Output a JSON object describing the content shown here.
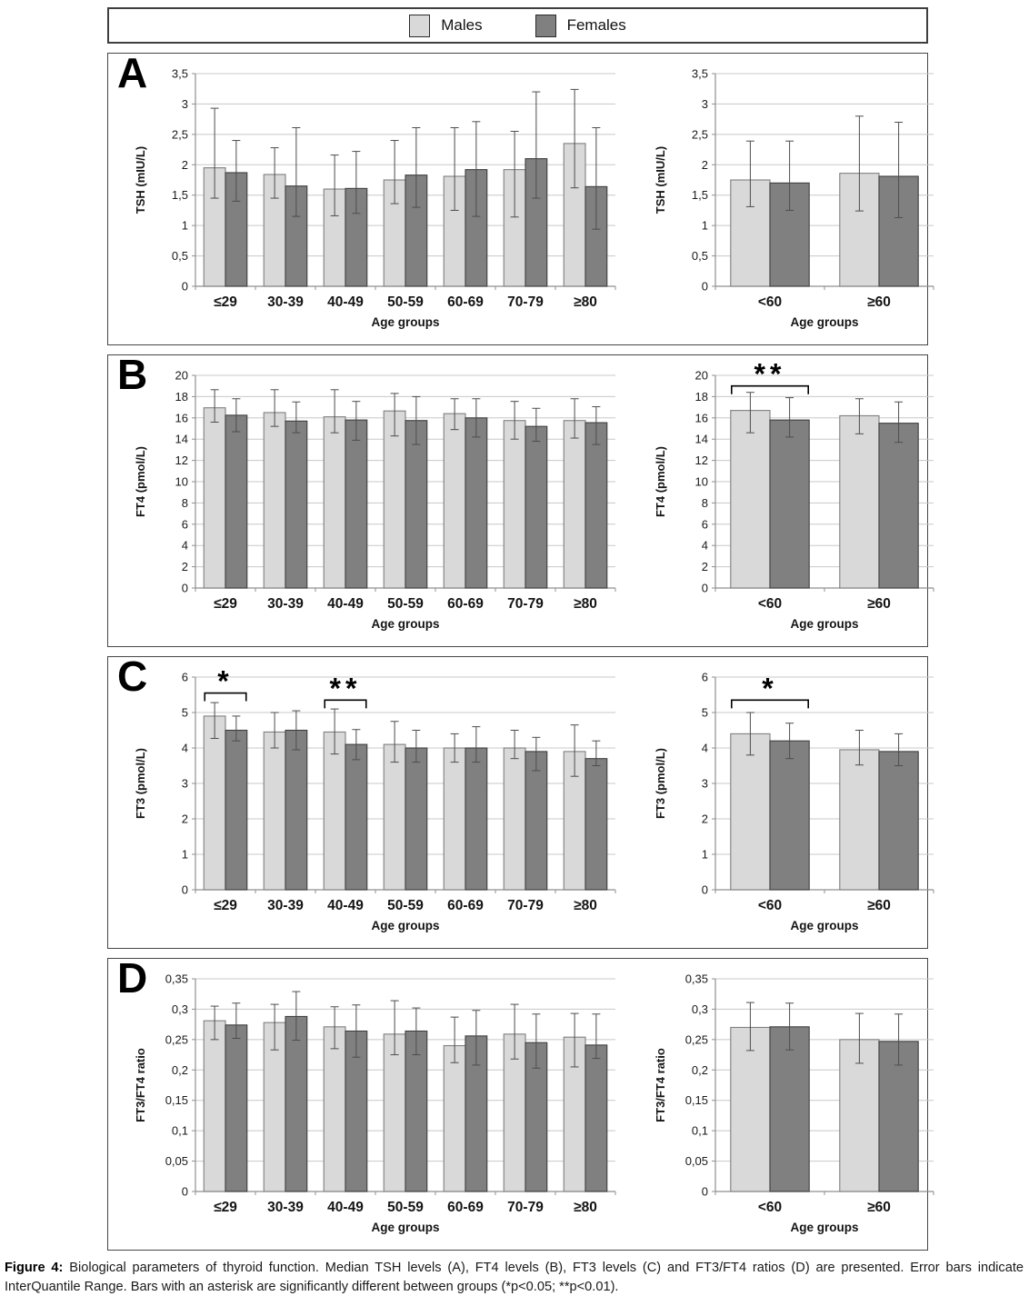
{
  "colors": {
    "male_fill": "#d9d9d9",
    "male_stroke": "#7f7f7f",
    "female_fill": "#808080",
    "female_stroke": "#3f3f3f",
    "grid": "#c8c8c8",
    "axis": "#8f8f8f",
    "error_bar": "#4d4d4d",
    "bracket": "#000000"
  },
  "legend": {
    "items": [
      {
        "label": "Males",
        "color": "#d9d9d9"
      },
      {
        "label": "Females",
        "color": "#808080"
      }
    ]
  },
  "panels": [
    {
      "letter": "A"
    },
    {
      "letter": "B"
    },
    {
      "letter": "C"
    },
    {
      "letter": "D"
    }
  ],
  "caption": {
    "prefix": "Figure 4:",
    "text": " Biological parameters of thyroid function. Median TSH levels (A), FT4 levels (B), FT3 levels (C) and FT3/FT4 ratios (D) are presented. Error bars indicate InterQuantile Range. Bars with an asterisk are significantly different between groups (*p<0.05; **p<0.01)."
  },
  "chart_data": [
    {
      "panel": "A",
      "position": "left",
      "type": "bar",
      "title": "",
      "xlabel": "Age groups",
      "ylabel": "TSH (mIU/L)",
      "categories": [
        "≤29",
        "30-39",
        "40-49",
        "50-59",
        "60-69",
        "70-79",
        "≥80"
      ],
      "ylim": [
        0,
        3.5
      ],
      "ytick_labels": [
        "0",
        "0,5",
        "1",
        "1,5",
        "2",
        "2,5",
        "3",
        "3,5"
      ],
      "series": [
        {
          "name": "Males",
          "values": [
            1.95,
            1.84,
            1.6,
            1.75,
            1.81,
            1.92,
            2.35
          ],
          "err_lo": [
            1.45,
            1.45,
            1.16,
            1.36,
            1.25,
            1.14,
            1.62
          ],
          "err_hi": [
            2.93,
            2.28,
            2.16,
            2.4,
            2.61,
            2.55,
            3.24
          ]
        },
        {
          "name": "Females",
          "values": [
            1.87,
            1.65,
            1.61,
            1.83,
            1.92,
            2.1,
            1.64
          ],
          "err_lo": [
            1.4,
            1.15,
            1.2,
            1.3,
            1.15,
            1.45,
            0.94
          ],
          "err_hi": [
            2.4,
            2.61,
            2.22,
            2.61,
            2.71,
            3.2,
            2.61
          ]
        }
      ],
      "brackets": []
    },
    {
      "panel": "A",
      "position": "right",
      "type": "bar",
      "title": "",
      "xlabel": "Age groups",
      "ylabel": "TSH (mIU/L)",
      "categories": [
        "<60",
        "≥60"
      ],
      "ylim": [
        0,
        3.5
      ],
      "ytick_labels": [
        "0",
        "0,5",
        "1",
        "1,5",
        "2",
        "2,5",
        "3",
        "3,5"
      ],
      "series": [
        {
          "name": "Males",
          "values": [
            1.75,
            1.86
          ],
          "err_lo": [
            1.31,
            1.24
          ],
          "err_hi": [
            2.39,
            2.8
          ]
        },
        {
          "name": "Females",
          "values": [
            1.7,
            1.81
          ],
          "err_lo": [
            1.25,
            1.13
          ],
          "err_hi": [
            2.39,
            2.7
          ]
        }
      ],
      "brackets": []
    },
    {
      "panel": "B",
      "position": "left",
      "type": "bar",
      "title": "",
      "xlabel": "Age groups",
      "ylabel": "FT4 (pmol/L)",
      "categories": [
        "≤29",
        "30-39",
        "40-49",
        "50-59",
        "60-69",
        "70-79",
        "≥80"
      ],
      "ylim": [
        0,
        20
      ],
      "ytick_labels": [
        "0",
        "2",
        "4",
        "6",
        "8",
        "10",
        "12",
        "14",
        "16",
        "18",
        "20"
      ],
      "series": [
        {
          "name": "Males",
          "values": [
            16.95,
            16.5,
            16.1,
            16.65,
            16.4,
            15.75,
            15.75
          ],
          "err_lo": [
            15.6,
            15.2,
            14.6,
            14.3,
            14.9,
            14.0,
            14.1
          ],
          "err_hi": [
            18.65,
            18.65,
            18.65,
            18.3,
            17.8,
            17.55,
            17.8
          ]
        },
        {
          "name": "Females",
          "values": [
            16.25,
            15.7,
            15.8,
            15.75,
            16.0,
            15.2,
            15.55
          ],
          "err_lo": [
            14.7,
            14.6,
            13.9,
            13.5,
            14.2,
            13.8,
            13.5
          ],
          "err_hi": [
            17.8,
            17.5,
            17.55,
            18.0,
            17.8,
            16.9,
            17.05
          ]
        }
      ],
      "brackets": []
    },
    {
      "panel": "B",
      "position": "right",
      "type": "bar",
      "title": "",
      "xlabel": "Age groups",
      "ylabel": "FT4 (pmol/L)",
      "categories": [
        "<60",
        "≥60"
      ],
      "ylim": [
        0,
        20
      ],
      "ytick_labels": [
        "0",
        "2",
        "4",
        "6",
        "8",
        "10",
        "12",
        "14",
        "16",
        "18",
        "20"
      ],
      "series": [
        {
          "name": "Males",
          "values": [
            16.7,
            16.2
          ],
          "err_lo": [
            14.6,
            14.5
          ],
          "err_hi": [
            18.4,
            17.8
          ]
        },
        {
          "name": "Females",
          "values": [
            15.8,
            15.5
          ],
          "err_lo": [
            14.2,
            13.7
          ],
          "err_hi": [
            17.9,
            17.5
          ]
        }
      ],
      "brackets": [
        {
          "group": 0,
          "label": "**",
          "y": 19.0
        }
      ]
    },
    {
      "panel": "C",
      "position": "left",
      "type": "bar",
      "title": "",
      "xlabel": "Age groups",
      "ylabel": "FT3 (pmol/L)",
      "categories": [
        "≤29",
        "30-39",
        "40-49",
        "50-59",
        "60-69",
        "70-79",
        "≥80"
      ],
      "ylim": [
        0,
        6
      ],
      "ytick_labels": [
        "0",
        "1",
        "2",
        "3",
        "4",
        "5",
        "6"
      ],
      "series": [
        {
          "name": "Males",
          "values": [
            4.9,
            4.45,
            4.45,
            4.1,
            4.0,
            4.0,
            3.9
          ],
          "err_lo": [
            4.27,
            4.0,
            3.83,
            3.6,
            3.6,
            3.7,
            3.2
          ],
          "err_hi": [
            5.28,
            5.0,
            5.1,
            4.75,
            4.4,
            4.5,
            4.65
          ]
        },
        {
          "name": "Females",
          "values": [
            4.5,
            4.5,
            4.1,
            4.0,
            4.0,
            3.9,
            3.7
          ],
          "err_lo": [
            4.2,
            3.95,
            3.67,
            3.6,
            3.6,
            3.36,
            3.5
          ],
          "err_hi": [
            4.9,
            5.05,
            4.52,
            4.5,
            4.6,
            4.3,
            4.2
          ]
        }
      ],
      "brackets": [
        {
          "group": 0,
          "label": "*",
          "y": 5.55
        },
        {
          "group": 2,
          "label": "**",
          "y": 5.35
        }
      ]
    },
    {
      "panel": "C",
      "position": "right",
      "type": "bar",
      "title": "",
      "xlabel": "Age groups",
      "ylabel": "FT3 (pmol/L)",
      "categories": [
        "<60",
        "≥60"
      ],
      "ylim": [
        0,
        6
      ],
      "ytick_labels": [
        "0",
        "1",
        "2",
        "3",
        "4",
        "5",
        "6"
      ],
      "series": [
        {
          "name": "Males",
          "values": [
            4.4,
            3.95
          ],
          "err_lo": [
            3.8,
            3.52
          ],
          "err_hi": [
            5.0,
            4.5
          ]
        },
        {
          "name": "Females",
          "values": [
            4.2,
            3.9
          ],
          "err_lo": [
            3.7,
            3.5
          ],
          "err_hi": [
            4.7,
            4.4
          ]
        }
      ],
      "brackets": [
        {
          "group": 0,
          "label": "*",
          "y": 5.35
        }
      ]
    },
    {
      "panel": "D",
      "position": "left",
      "type": "bar",
      "title": "",
      "xlabel": "Age groups",
      "ylabel": "FT3/FT4 ratio",
      "categories": [
        "≤29",
        "30-39",
        "40-49",
        "50-59",
        "60-69",
        "70-79",
        "≥80"
      ],
      "ylim": [
        0,
        0.35
      ],
      "ytick_labels": [
        "0",
        "0,05",
        "0,1",
        "0,15",
        "0,2",
        "0,25",
        "0,3",
        "0,35"
      ],
      "series": [
        {
          "name": "Males",
          "values": [
            0.281,
            0.278,
            0.271,
            0.259,
            0.24,
            0.259,
            0.254
          ],
          "err_lo": [
            0.25,
            0.233,
            0.235,
            0.225,
            0.212,
            0.218,
            0.205
          ],
          "err_hi": [
            0.305,
            0.308,
            0.304,
            0.314,
            0.287,
            0.308,
            0.293
          ]
        },
        {
          "name": "Females",
          "values": [
            0.274,
            0.288,
            0.264,
            0.264,
            0.256,
            0.245,
            0.241
          ],
          "err_lo": [
            0.252,
            0.249,
            0.221,
            0.225,
            0.208,
            0.203,
            0.219
          ],
          "err_hi": [
            0.31,
            0.329,
            0.307,
            0.302,
            0.298,
            0.292,
            0.292
          ]
        }
      ],
      "brackets": []
    },
    {
      "panel": "D",
      "position": "right",
      "type": "bar",
      "title": "",
      "xlabel": "Age groups",
      "ylabel": "FT3/FT4 ratio",
      "categories": [
        "<60",
        "≥60"
      ],
      "ylim": [
        0,
        0.35
      ],
      "ytick_labels": [
        "0",
        "0,05",
        "0,1",
        "0,15",
        "0,2",
        "0,25",
        "0,3",
        "0,35"
      ],
      "series": [
        {
          "name": "Males",
          "values": [
            0.27,
            0.25
          ],
          "err_lo": [
            0.232,
            0.211
          ],
          "err_hi": [
            0.311,
            0.293
          ]
        },
        {
          "name": "Females",
          "values": [
            0.271,
            0.247
          ],
          "err_lo": [
            0.233,
            0.208
          ],
          "err_hi": [
            0.31,
            0.292
          ]
        }
      ],
      "brackets": []
    }
  ]
}
